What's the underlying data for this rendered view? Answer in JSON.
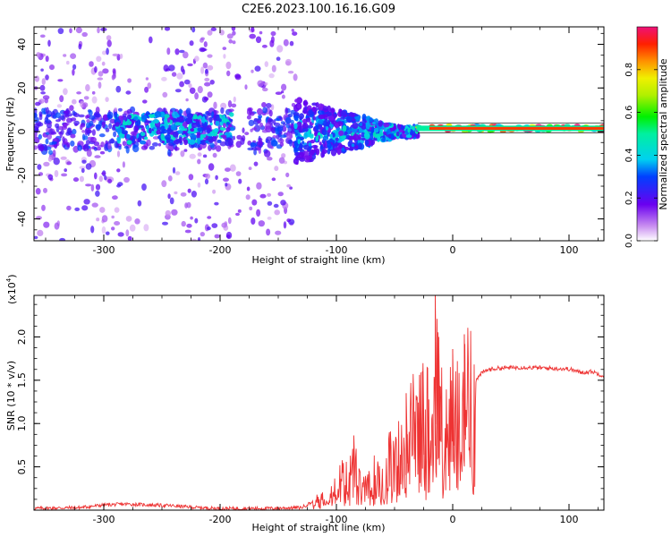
{
  "title": "C2E6.2023.100.16.16.G09",
  "chart_data": [
    {
      "type": "heatmap",
      "xlabel": "Height of straight line (km)",
      "ylabel": "Frequency (Hz)",
      "xlim": [
        -360,
        130
      ],
      "ylim": [
        -50,
        48
      ],
      "xticks": [
        -300,
        -200,
        -100,
        0,
        100
      ],
      "yticks": [
        -40,
        -20,
        0,
        20,
        40
      ],
      "colorbar": {
        "label": "Normalized spectral amplitude",
        "range": [
          0,
          1
        ],
        "ticks": [
          "0.0",
          "0.2",
          "0.4",
          "0.6",
          "0.8"
        ]
      },
      "features": [
        {
          "x_range": [
            -360,
            -135
          ],
          "y_range": [
            -50,
            48
          ],
          "level": 0.2
        },
        {
          "x_range": [
            -290,
            -190
          ],
          "y_range": [
            -5,
            8
          ],
          "level": 0.35
        },
        {
          "x_range": [
            -135,
            -30
          ],
          "y_range": [
            -15,
            15
          ],
          "level": 0.4
        },
        {
          "x_range": [
            -30,
            130
          ],
          "y_range": [
            0,
            3
          ],
          "level": 0.85
        }
      ]
    },
    {
      "type": "line",
      "xlabel": "Height of straight line (km)",
      "ylabel": "SNR (10 * v/v)",
      "yscale_label": "(x10",
      "yscale_exp": "4",
      "xlim": [
        -360,
        130
      ],
      "ylim": [
        0,
        24800
      ],
      "xticks": [
        -300,
        -200,
        -100,
        0,
        100
      ],
      "yticks": [
        5000,
        10000,
        15000,
        20000
      ],
      "ytick_labels": [
        "0.5",
        "1.0",
        "1.5",
        "2.0"
      ],
      "series": [
        {
          "color": "#ee3333",
          "x": [
            -360,
            -320,
            -300,
            -280,
            -260,
            -240,
            -220,
            -200,
            -160,
            -130,
            -120,
            -110,
            -100,
            -95,
            -90,
            -85,
            -80,
            -75,
            -70,
            -65,
            -60,
            -55,
            -50,
            -45,
            -40,
            -35,
            -30,
            -25,
            -20,
            -15,
            -12,
            -10,
            -8,
            -5,
            0,
            5,
            8,
            10,
            15,
            20,
            25,
            30,
            40,
            60,
            80,
            100,
            110,
            120,
            130
          ],
          "y": [
            200,
            300,
            600,
            700,
            600,
            500,
            300,
            200,
            200,
            300,
            1000,
            1800,
            2800,
            4000,
            3500,
            5800,
            3000,
            2600,
            3200,
            5500,
            3800,
            6500,
            5200,
            8500,
            9000,
            10500,
            9500,
            12000,
            11000,
            13500,
            16500,
            12000,
            9500,
            10500,
            11000,
            12000,
            10500,
            13000,
            14000,
            15000,
            15800,
            16200,
            16400,
            16500,
            16400,
            16300,
            15900,
            16000,
            15500
          ]
        }
      ],
      "spikes": [
        [
          -15,
          24800
        ],
        [
          -12,
          20000
        ],
        [
          0,
          18600
        ],
        [
          10,
          20300
        ],
        [
          -40,
          13500
        ],
        [
          -26,
          16000
        ]
      ]
    }
  ]
}
